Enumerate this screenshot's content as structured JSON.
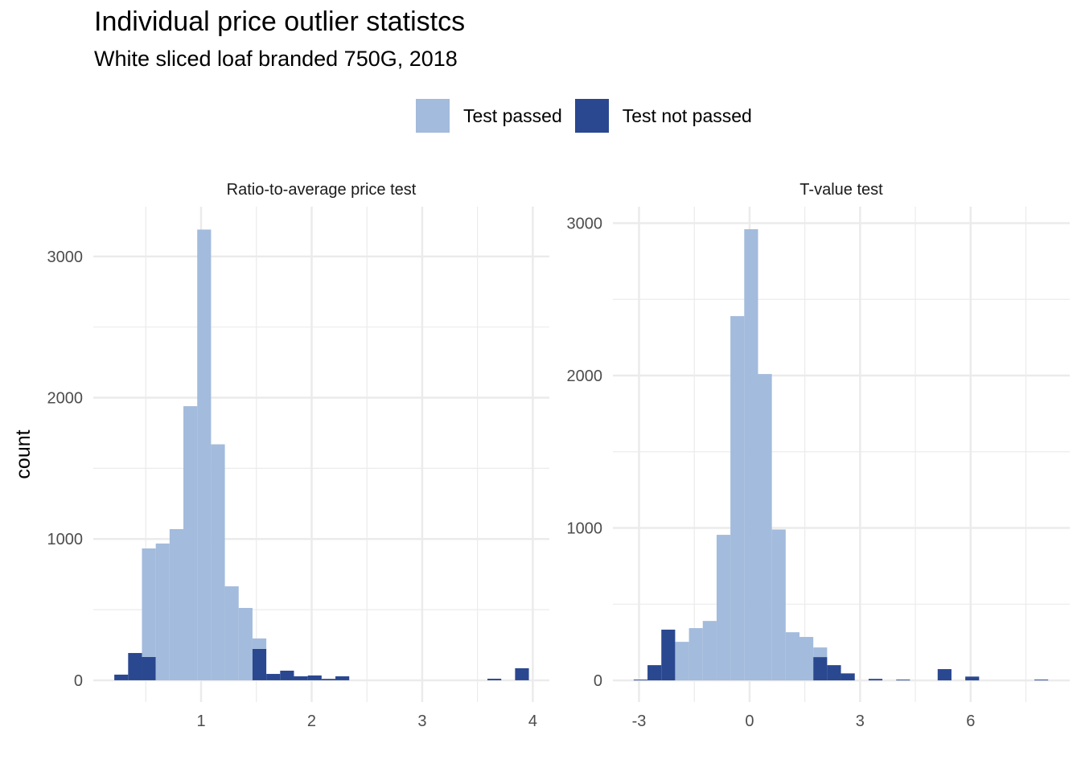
{
  "title": "Individual price outlier statistcs",
  "subtitle": "White sliced loaf branded 750G, 2018",
  "legend": {
    "items": [
      {
        "label": "Test passed",
        "color": "#a3bbdc"
      },
      {
        "label": "Test not passed",
        "color": "#2a4890"
      }
    ],
    "placement": "top"
  },
  "ylabel": "count",
  "chart_data": [
    {
      "type": "bar",
      "stacked": true,
      "title": "Ratio-to-average price test",
      "bin_width": 0.125,
      "xlim": [
        0.025,
        4.15
      ],
      "ylim": [
        -154,
        3352
      ],
      "xticks": [
        1,
        2,
        3,
        4
      ],
      "xtick_labels": [
        "1",
        "2",
        "3",
        "4"
      ],
      "xminor": [
        0.5,
        1.5,
        2.5,
        3.5
      ],
      "yticks": [
        0,
        1000,
        2000,
        3000
      ],
      "ytick_labels": [
        "0",
        "1000",
        "2000",
        "3000"
      ],
      "yminor": [
        500,
        1500,
        2500
      ],
      "bins": [
        {
          "x0": 0.215,
          "not_passed": 40,
          "passed": 0
        },
        {
          "x0": 0.34,
          "not_passed": 193,
          "passed": 0
        },
        {
          "x0": 0.465,
          "not_passed": 165,
          "passed": 768
        },
        {
          "x0": 0.59,
          "not_passed": 0,
          "passed": 968
        },
        {
          "x0": 0.715,
          "not_passed": 0,
          "passed": 1070
        },
        {
          "x0": 0.84,
          "not_passed": 0,
          "passed": 1940
        },
        {
          "x0": 0.965,
          "not_passed": 0,
          "passed": 3190
        },
        {
          "x0": 1.09,
          "not_passed": 0,
          "passed": 1670
        },
        {
          "x0": 1.215,
          "not_passed": 0,
          "passed": 665
        },
        {
          "x0": 1.34,
          "not_passed": 0,
          "passed": 512
        },
        {
          "x0": 1.465,
          "not_passed": 222,
          "passed": 74
        },
        {
          "x0": 1.59,
          "not_passed": 45,
          "passed": 0
        },
        {
          "x0": 1.715,
          "not_passed": 68,
          "passed": 0
        },
        {
          "x0": 1.84,
          "not_passed": 28,
          "passed": 0
        },
        {
          "x0": 1.965,
          "not_passed": 34,
          "passed": 0
        },
        {
          "x0": 2.09,
          "not_passed": 10,
          "passed": 0
        },
        {
          "x0": 2.215,
          "not_passed": 28,
          "passed": 0
        },
        {
          "x0": 3.59,
          "not_passed": 11,
          "passed": 0
        },
        {
          "x0": 3.84,
          "not_passed": 85,
          "passed": 0
        }
      ]
    },
    {
      "type": "bar",
      "stacked": true,
      "title": "T-value test",
      "bin_width": 0.375,
      "xlim": [
        -3.71,
        8.69
      ],
      "ylim": [
        -142,
        3108
      ],
      "xticks": [
        -3,
        0,
        3,
        6
      ],
      "xtick_labels": [
        "-3",
        "0",
        "3",
        "6"
      ],
      "xminor": [
        -1.5,
        1.5,
        4.5,
        7.5
      ],
      "yticks": [
        0,
        1000,
        2000,
        3000
      ],
      "ytick_labels": [
        "0",
        "1000",
        "2000",
        "3000"
      ],
      "yminor": [
        500,
        1500,
        2500
      ],
      "bins": [
        {
          "x0": -3.145,
          "not_passed": 5,
          "passed": 0
        },
        {
          "x0": -2.77,
          "not_passed": 100,
          "passed": 0
        },
        {
          "x0": -2.395,
          "not_passed": 333,
          "passed": 0
        },
        {
          "x0": -2.02,
          "not_passed": 0,
          "passed": 253
        },
        {
          "x0": -1.645,
          "not_passed": 0,
          "passed": 343
        },
        {
          "x0": -1.27,
          "not_passed": 0,
          "passed": 390
        },
        {
          "x0": -0.895,
          "not_passed": 0,
          "passed": 955
        },
        {
          "x0": -0.52,
          "not_passed": 0,
          "passed": 2390
        },
        {
          "x0": -0.145,
          "not_passed": 0,
          "passed": 2960
        },
        {
          "x0": 0.23,
          "not_passed": 0,
          "passed": 2010
        },
        {
          "x0": 0.605,
          "not_passed": 0,
          "passed": 990
        },
        {
          "x0": 0.98,
          "not_passed": 0,
          "passed": 316
        },
        {
          "x0": 1.355,
          "not_passed": 0,
          "passed": 285
        },
        {
          "x0": 1.73,
          "not_passed": 153,
          "passed": 63
        },
        {
          "x0": 2.105,
          "not_passed": 100,
          "passed": 0
        },
        {
          "x0": 2.48,
          "not_passed": 46,
          "passed": 0
        },
        {
          "x0": 3.23,
          "not_passed": 10,
          "passed": 0
        },
        {
          "x0": 3.98,
          "not_passed": 5,
          "passed": 0
        },
        {
          "x0": 5.105,
          "not_passed": 74,
          "passed": 0
        },
        {
          "x0": 5.855,
          "not_passed": 25,
          "passed": 0
        },
        {
          "x0": 7.73,
          "not_passed": 5,
          "passed": 0
        }
      ]
    }
  ]
}
